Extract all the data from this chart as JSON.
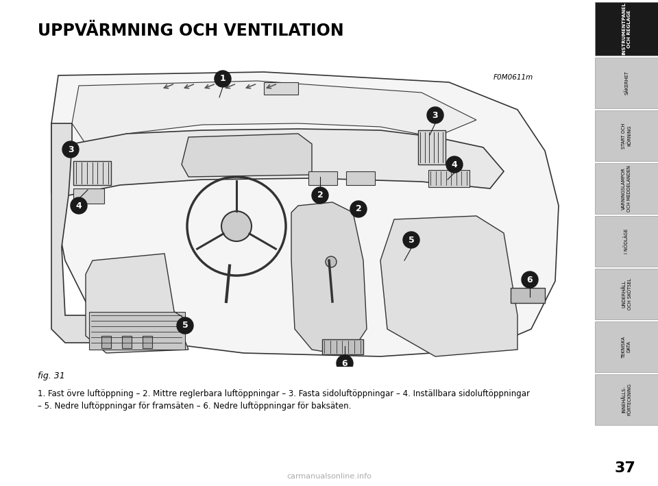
{
  "bg_color": "#ffffff",
  "title": "UPPVÄRMNING OCH VENTILATION",
  "fig_label": "F0M0611m",
  "fig_caption": "fig. 31",
  "caption_line1": "1. Fast övre luftöppning – 2. Mittre reglerbara luftöppningar – 3. Fasta sidoluftöppningar – 4. Inställbara sidoluftöppningar",
  "caption_line2": "– 5. Nedre luftöppningar för framsäten – 6. Nedre luftöppningar för baksäten.",
  "sidebar_items": [
    {
      "label": "INSTRUMENTPANEL\nOCH REGLAGE",
      "bg": "#1a1a1a",
      "fg": "#ffffff"
    },
    {
      "label": "SÄKERHET",
      "bg": "#c8c8c8",
      "fg": "#000000"
    },
    {
      "label": "START OCH\nKÖRNING",
      "bg": "#c8c8c8",
      "fg": "#000000"
    },
    {
      "label": "VARNINGSLAMPOR\nOCH MEDDELANDEN",
      "bg": "#c8c8c8",
      "fg": "#000000"
    },
    {
      "label": "I NÖDLÄGE",
      "bg": "#c8c8c8",
      "fg": "#000000"
    },
    {
      "label": "UNDERHÅLL\nOCH SKÖTSEL",
      "bg": "#c8c8c8",
      "fg": "#000000"
    },
    {
      "label": "TEKNISKA\nDATA",
      "bg": "#c8c8c8",
      "fg": "#000000"
    },
    {
      "label": "INNEHÅLLS-\nFÖRTECKNING",
      "bg": "#c8c8c8",
      "fg": "#000000"
    }
  ],
  "page_number": "37",
  "watermark": "carmanualsonline.info"
}
